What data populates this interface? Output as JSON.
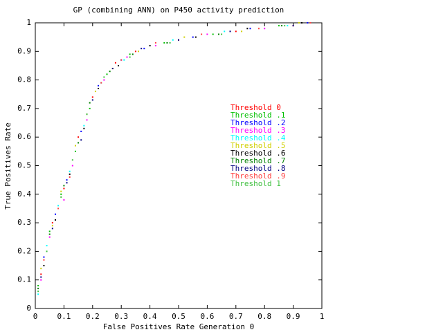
{
  "chart_data": {
    "type": "scatter",
    "title": "GP (combining ANN) on P450 activity prediction",
    "x_label": "False Positives Rate  Generation 0",
    "y_label": "True Positives Rate",
    "xlim": [
      0,
      1
    ],
    "ylim": [
      0,
      1
    ],
    "xticks": [
      0,
      0.1,
      0.2,
      0.3,
      0.4,
      0.5,
      0.6,
      0.7,
      0.8,
      0.9,
      1
    ],
    "yticks": [
      0,
      0.1,
      0.2,
      0.3,
      0.4,
      0.5,
      0.6,
      0.7,
      0.8,
      0.9,
      1
    ],
    "series": [
      {
        "name": "Threshold 0",
        "color": "#ff0000",
        "x": [
          0.02,
          0.06,
          0.1,
          0.15,
          0.2,
          0.28,
          0.35,
          0.5,
          0.7,
          0.9
        ],
        "values": [
          0.12,
          0.3,
          0.42,
          0.6,
          0.74,
          0.86,
          0.9,
          0.94,
          0.97,
          0.99
        ]
      },
      {
        "name": "Threshold .1",
        "color": "#00c000",
        "x": [
          0.01,
          0.05,
          0.09,
          0.14,
          0.19,
          0.25,
          0.33,
          0.45,
          0.62,
          0.85
        ],
        "values": [
          0.08,
          0.27,
          0.4,
          0.55,
          0.7,
          0.82,
          0.89,
          0.93,
          0.96,
          0.99
        ]
      },
      {
        "name": "Threshold .2",
        "color": "#0000ff",
        "x": [
          0.03,
          0.07,
          0.11,
          0.16,
          0.22,
          0.3,
          0.38,
          0.55,
          0.75,
          0.95
        ],
        "values": [
          0.18,
          0.33,
          0.45,
          0.62,
          0.78,
          0.87,
          0.91,
          0.95,
          0.98,
          1
        ]
      },
      {
        "name": "Threshold .3",
        "color": "#ff00ff",
        "x": [
          0.02,
          0.05,
          0.1,
          0.13,
          0.18,
          0.24,
          0.32,
          0.42,
          0.6,
          0.8
        ],
        "values": [
          0.1,
          0.25,
          0.38,
          0.5,
          0.66,
          0.8,
          0.88,
          0.92,
          0.96,
          0.98
        ]
      },
      {
        "name": "Threshold .4",
        "color": "#00ffff",
        "x": [
          0.01,
          0.04,
          0.08,
          0.12,
          0.17,
          0.23,
          0.31,
          0.48,
          0.66,
          0.88
        ],
        "values": [
          0.05,
          0.22,
          0.36,
          0.48,
          0.64,
          0.79,
          0.87,
          0.94,
          0.97,
          0.99
        ]
      },
      {
        "name": "Threshold .5",
        "color": "#d0d000",
        "x": [
          0.02,
          0.06,
          0.09,
          0.14,
          0.21,
          0.27,
          0.36,
          0.52,
          0.72,
          0.92
        ],
        "values": [
          0.14,
          0.29,
          0.41,
          0.57,
          0.76,
          0.84,
          0.9,
          0.95,
          0.97,
          1
        ]
      },
      {
        "name": "Threshold .6",
        "color": "#000000",
        "x": [
          0.03,
          0.07,
          0.12,
          0.17,
          0.22,
          0.29,
          0.4,
          0.56,
          0.74,
          0.93
        ],
        "values": [
          0.15,
          0.31,
          0.47,
          0.63,
          0.77,
          0.85,
          0.92,
          0.95,
          0.98,
          1
        ]
      },
      {
        "name": "Threshold .7",
        "color": "#008000",
        "x": [
          0.01,
          0.05,
          0.1,
          0.15,
          0.19,
          0.26,
          0.34,
          0.46,
          0.64,
          0.86
        ],
        "values": [
          0.07,
          0.26,
          0.43,
          0.58,
          0.72,
          0.83,
          0.89,
          0.93,
          0.96,
          0.99
        ]
      },
      {
        "name": "Threshold .8",
        "color": "#000080",
        "x": [
          0.02,
          0.06,
          0.11,
          0.16,
          0.2,
          0.27,
          0.37,
          0.5,
          0.68,
          0.9
        ],
        "values": [
          0.11,
          0.28,
          0.44,
          0.59,
          0.73,
          0.84,
          0.91,
          0.94,
          0.97,
          0.99
        ]
      },
      {
        "name": "Threshold .9",
        "color": "#ff4040",
        "x": [
          0.03,
          0.08,
          0.12,
          0.18,
          0.23,
          0.3,
          0.42,
          0.58,
          0.78,
          0.96
        ],
        "values": [
          0.17,
          0.35,
          0.46,
          0.68,
          0.79,
          0.87,
          0.93,
          0.96,
          0.98,
          1
        ]
      },
      {
        "name": "Threshold 1",
        "color": "#40c040",
        "x": [
          0.01,
          0.04,
          0.09,
          0.13,
          0.18,
          0.24,
          0.33,
          0.47,
          0.65,
          0.87
        ],
        "values": [
          0.06,
          0.2,
          0.39,
          0.52,
          0.68,
          0.81,
          0.88,
          0.93,
          0.96,
          0.99
        ]
      }
    ]
  }
}
